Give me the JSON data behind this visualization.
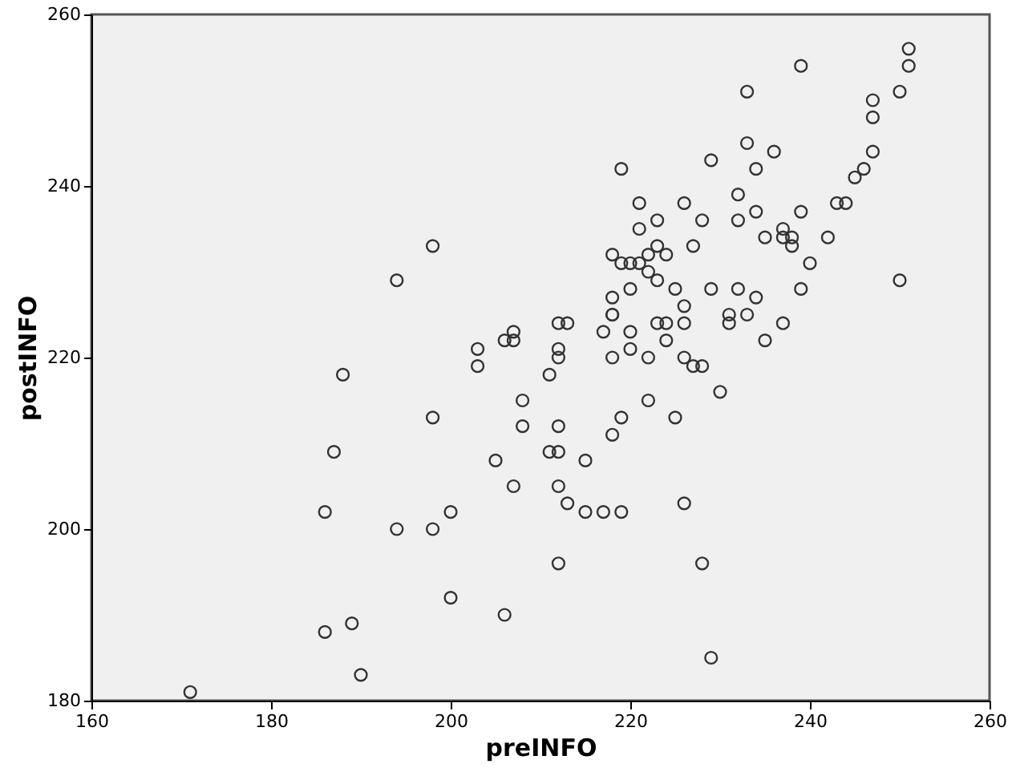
{
  "chart_data": {
    "type": "scatter",
    "xlabel": "preINFO",
    "ylabel": "postINFO",
    "color": "#333333",
    "marker": "circle",
    "grid": false,
    "xlim": [
      160,
      260
    ],
    "ylim": [
      180,
      260
    ],
    "xticks": [
      160,
      180,
      200,
      220,
      240,
      260
    ],
    "yticks": [
      180,
      200,
      220,
      240,
      260
    ],
    "x": [
      171,
      186,
      189,
      190,
      186,
      187,
      188,
      194,
      198,
      198,
      200,
      200,
      206,
      205,
      207,
      208,
      208,
      203,
      203,
      206,
      207,
      207,
      194,
      198,
      251,
      251,
      250,
      239,
      233,
      247,
      247,
      247,
      246,
      245,
      243,
      244,
      233,
      236,
      234,
      229,
      219,
      221,
      226,
      223,
      221,
      228,
      232,
      232,
      234,
      239,
      235,
      237,
      237,
      238,
      238,
      242,
      240,
      250,
      239,
      227,
      223,
      222,
      224,
      218,
      219,
      220,
      221,
      222,
      223,
      220,
      225,
      229,
      232,
      234,
      218,
      226,
      218,
      218,
      231,
      231,
      233,
      220,
      217,
      223,
      224,
      226,
      237,
      235,
      224,
      220,
      222,
      218,
      226,
      227,
      228,
      212,
      213,
      212,
      212,
      211,
      230,
      222,
      212,
      219,
      225,
      218,
      211,
      212,
      215,
      212,
      213,
      215,
      217,
      219,
      226,
      212,
      228,
      229
    ],
    "values": [
      181,
      188,
      189,
      183,
      202,
      209,
      218,
      200,
      200,
      213,
      202,
      192,
      190,
      208,
      205,
      215,
      212,
      221,
      219,
      222,
      223,
      222,
      229,
      233,
      256,
      254,
      251,
      254,
      251,
      250,
      248,
      244,
      242,
      241,
      238,
      238,
      245,
      244,
      242,
      243,
      242,
      238,
      238,
      236,
      235,
      236,
      239,
      236,
      237,
      237,
      234,
      235,
      234,
      234,
      233,
      234,
      231,
      229,
      228,
      233,
      233,
      232,
      232,
      232,
      231,
      231,
      231,
      230,
      229,
      228,
      228,
      228,
      228,
      227,
      227,
      226,
      225,
      225,
      225,
      224,
      225,
      223,
      223,
      224,
      224,
      224,
      224,
      222,
      222,
      221,
      220,
      220,
      220,
      219,
      219,
      224,
      224,
      221,
      220,
      218,
      216,
      215,
      212,
      213,
      213,
      211,
      209,
      209,
      208,
      205,
      203,
      202,
      202,
      202,
      203,
      196,
      196,
      185
    ]
  }
}
